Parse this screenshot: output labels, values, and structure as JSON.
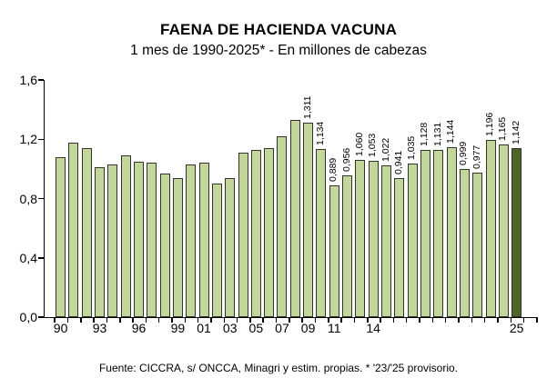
{
  "footer": "Fuente: CICCRA, s/ ONCCA, Minagri y estim. propias. * '23/'25 provisorio.",
  "colors": {
    "bar_fill": "#c3d69b",
    "bar_fill_highlight": "#4f6228",
    "bar_border": "#333428",
    "axis": "#000000",
    "background": "#ffffff"
  },
  "chart_data": {
    "type": "bar",
    "title": "FAENA DE HACIENDA VACUNA",
    "subtitle": "1 mes de 1990-2025* - En millones de cabezas",
    "ylabel": "millones de cabezas",
    "xlabel": "",
    "ylim": [
      0,
      1.6
    ],
    "grid": false,
    "legend": "none",
    "years": [
      1990,
      1991,
      1992,
      1993,
      1994,
      1995,
      1996,
      1997,
      1998,
      1999,
      2000,
      2001,
      2002,
      2003,
      2004,
      2005,
      2006,
      2007,
      2008,
      2009,
      2010,
      2011,
      2012,
      2013,
      2014,
      2015,
      2016,
      2017,
      2018,
      2019,
      2020,
      2021,
      2022,
      2023,
      2024,
      2025
    ],
    "values": [
      1.08,
      1.18,
      1.14,
      1.01,
      1.03,
      1.09,
      1.05,
      1.04,
      0.97,
      0.94,
      1.03,
      1.04,
      0.9,
      0.94,
      1.11,
      1.13,
      1.14,
      1.22,
      1.33,
      1.311,
      1.134,
      0.889,
      0.956,
      1.06,
      1.053,
      1.022,
      0.941,
      1.035,
      1.128,
      1.131,
      1.144,
      0.999,
      0.977,
      1.196,
      1.165,
      1.142
    ],
    "bar_labels": [
      null,
      null,
      null,
      null,
      null,
      null,
      null,
      null,
      null,
      null,
      null,
      null,
      null,
      null,
      null,
      null,
      null,
      null,
      null,
      "1,311",
      "1,134",
      "0,889",
      "0,956",
      "1,060",
      "1,053",
      "1,022",
      "0,941",
      "1,035",
      "1,128",
      "1,131",
      "1,144",
      "0,999",
      "0,977",
      "1,196",
      "1,165",
      "1,142"
    ],
    "highlighted_year": 2025,
    "y_ticks": [
      {
        "label": "0,0",
        "value": 0.0
      },
      {
        "label": "0,4",
        "value": 0.4
      },
      {
        "label": "0,8",
        "value": 0.8
      },
      {
        "label": "1,2",
        "value": 1.2
      },
      {
        "label": "1,6",
        "value": 1.6
      }
    ],
    "x_tick_labels": [
      {
        "label": "90",
        "year": 1990
      },
      {
        "label": "93",
        "year": 1993
      },
      {
        "label": "96",
        "year": 1996
      },
      {
        "label": "99",
        "year": 1999
      },
      {
        "label": "01",
        "year": 2001
      },
      {
        "label": "03",
        "year": 2003
      },
      {
        "label": "05",
        "year": 2005
      },
      {
        "label": "07",
        "year": 2007
      },
      {
        "label": "09",
        "year": 2009
      },
      {
        "label": "11",
        "year": 2011
      },
      {
        "label": "14",
        "year": 2014
      },
      {
        "label": "25",
        "year": 2025
      }
    ]
  }
}
